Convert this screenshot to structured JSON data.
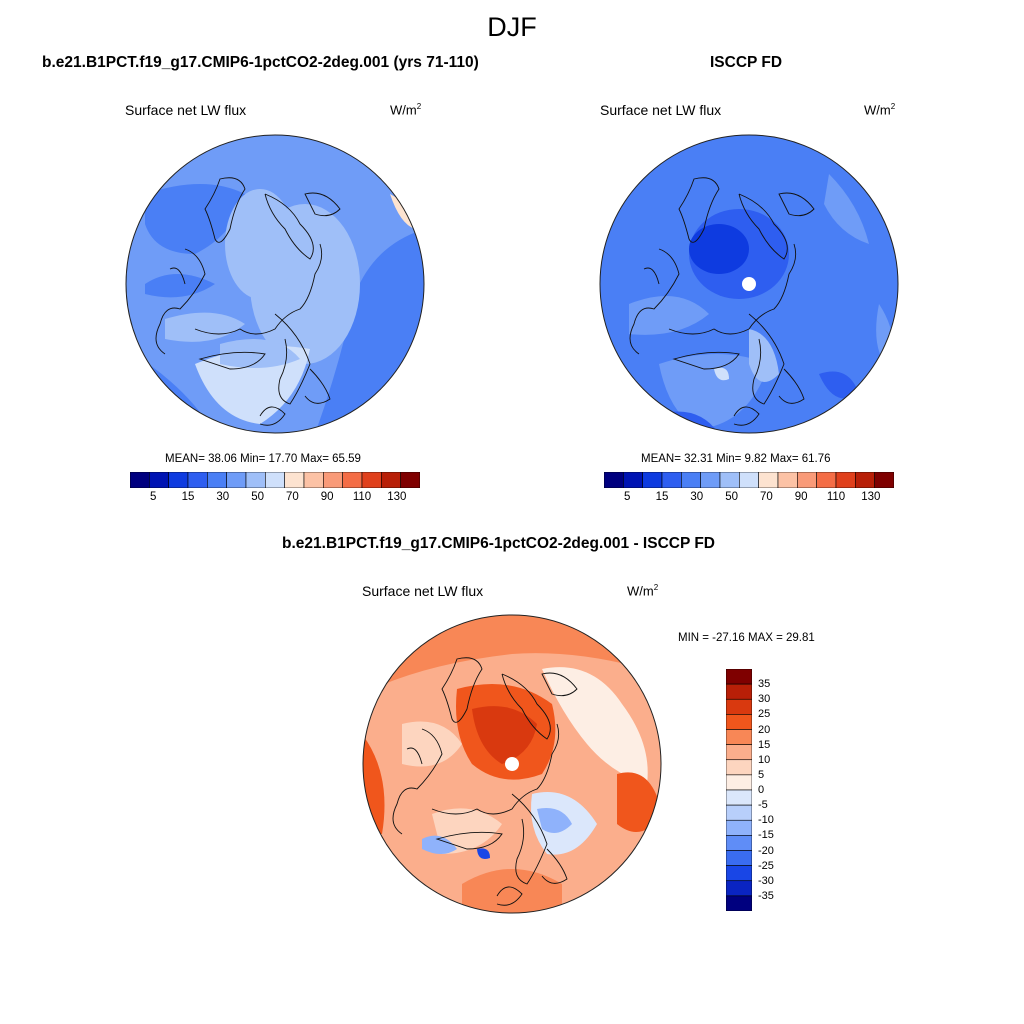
{
  "figure_title": "DJF",
  "panels": [
    {
      "title": "b.e21.B1PCT.f19_g17.CMIP6-1pctCO2-2deg.001 (yrs 71-110)",
      "variable": "Surface net LW flux",
      "units_base": "W/m",
      "units_exp": "2",
      "stats": "MEAN=  38.06  Min=  17.70  Max=  65.59",
      "pole_hole": false
    },
    {
      "title": "ISCCP FD",
      "variable": "Surface net LW flux",
      "units_base": "W/m",
      "units_exp": "2",
      "stats": "MEAN=  32.31  Min=   9.82  Max=  61.76",
      "pole_hole": true
    },
    {
      "title": "b.e21.B1PCT.f19_g17.CMIP6-1pctCO2-2deg.001 - ISCCP FD",
      "variable": "Surface net LW flux",
      "units_base": "W/m",
      "units_exp": "2",
      "stats": "MIN = -27.16 MAX =  29.81",
      "pole_hole": true
    }
  ],
  "colorbars": {
    "absolute": {
      "colors": [
        "#00007f",
        "#0014b3",
        "#0e3be0",
        "#2e5ef0",
        "#4a7ff5",
        "#6f9cf7",
        "#9fbff8",
        "#cfe0fb",
        "#fde3d0",
        "#fcc2a5",
        "#f99a78",
        "#f46d46",
        "#e0401c",
        "#b81f07",
        "#7f0000"
      ],
      "tick_labels": [
        "5",
        "15",
        "30",
        "50",
        "70",
        "90",
        "110",
        "130"
      ]
    },
    "difference": {
      "colors": [
        "#7f0000",
        "#b81f07",
        "#d9390f",
        "#f0561c",
        "#f88756",
        "#fbae8c",
        "#fdd5bf",
        "#fdeee4",
        "#dbe7fb",
        "#b8cffb",
        "#8fb2fb",
        "#5f8df7",
        "#3a6cf0",
        "#1946e6",
        "#0a24c2",
        "#00007f"
      ],
      "tick_labels": [
        "35",
        "30",
        "25",
        "20",
        "15",
        "10",
        "5",
        "0",
        "-5",
        "-10",
        "-15",
        "-20",
        "-25",
        "-30",
        "-35"
      ]
    }
  },
  "chart_data": [
    {
      "type": "heatmap",
      "title": "b.e21.B1PCT.f19_g17.CMIP6-1pctCO2-2deg.001 (yrs 71-110)",
      "variable": "Surface net LW flux",
      "units": "W/m2",
      "projection": "north polar stereographic",
      "season": "DJF",
      "mean": 38.06,
      "min": 17.7,
      "max": 65.59,
      "levels": [
        5,
        10,
        15,
        20,
        30,
        40,
        50,
        60,
        70,
        80,
        90,
        100,
        110,
        120,
        130
      ]
    },
    {
      "type": "heatmap",
      "title": "ISCCP FD",
      "variable": "Surface net LW flux",
      "units": "W/m2",
      "projection": "north polar stereographic",
      "season": "DJF",
      "mean": 32.31,
      "min": 9.82,
      "max": 61.76,
      "levels": [
        5,
        10,
        15,
        20,
        30,
        40,
        50,
        60,
        70,
        80,
        90,
        100,
        110,
        120,
        130
      ]
    },
    {
      "type": "heatmap",
      "title": "b.e21.B1PCT.f19_g17.CMIP6-1pctCO2-2deg.001 - ISCCP FD",
      "variable": "Surface net LW flux",
      "units": "W/m2",
      "projection": "north polar stereographic",
      "season": "DJF",
      "min": -27.16,
      "max": 29.81,
      "levels": [
        -35,
        -30,
        -25,
        -20,
        -15,
        -10,
        -5,
        0,
        5,
        10,
        15,
        20,
        25,
        30,
        35
      ]
    }
  ]
}
